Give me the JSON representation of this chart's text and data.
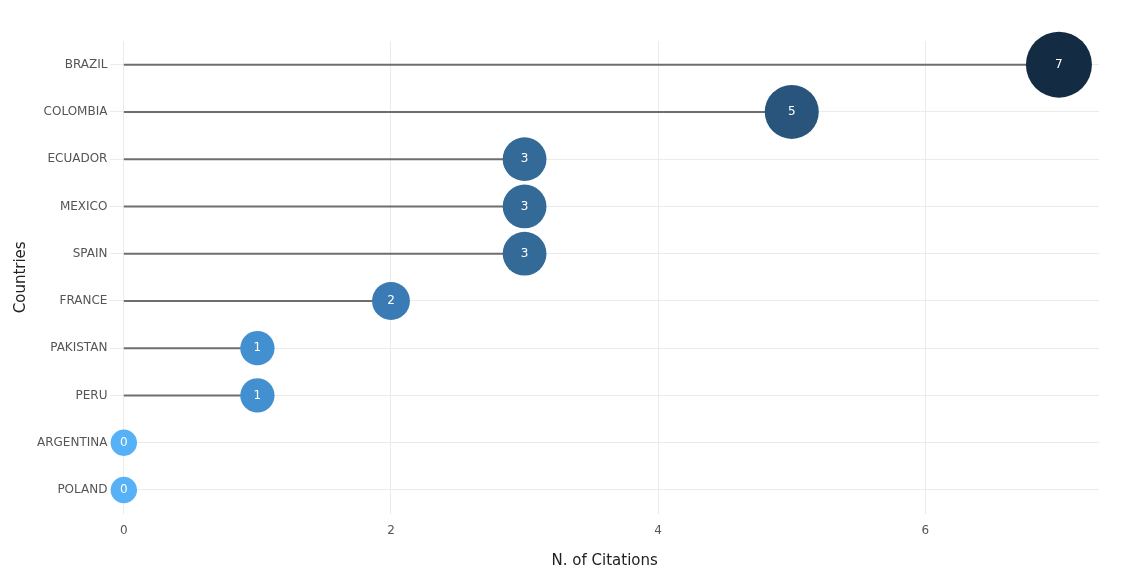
{
  "chart_data": {
    "type": "lollipop",
    "orientation": "horizontal",
    "xlabel": "N. of Citations",
    "ylabel": "Countries",
    "categories": [
      "BRAZIL",
      "COLOMBIA",
      "ECUADOR",
      "MEXICO",
      "SPAIN",
      "FRANCE",
      "PAKISTAN",
      "PERU",
      "ARGENTINA",
      "POLAND"
    ],
    "values": [
      7,
      5,
      3,
      3,
      3,
      2,
      1,
      1,
      0,
      0
    ],
    "sizes": [
      1,
      0.67,
      0.44,
      0.44,
      0.44,
      0.33,
      0.27,
      0.27,
      0.16,
      0.16
    ],
    "colors": [
      "#132b43",
      "#29547c",
      "#336a98",
      "#336a98",
      "#336a98",
      "#3a7bb5",
      "#4290cf",
      "#4290cf",
      "#56b1f7",
      "#56b1f7"
    ],
    "xlim": [
      -0.1,
      7.3
    ],
    "xticks": [
      0,
      2,
      4,
      6
    ],
    "grid": true,
    "data_labels": true,
    "legend": false
  }
}
